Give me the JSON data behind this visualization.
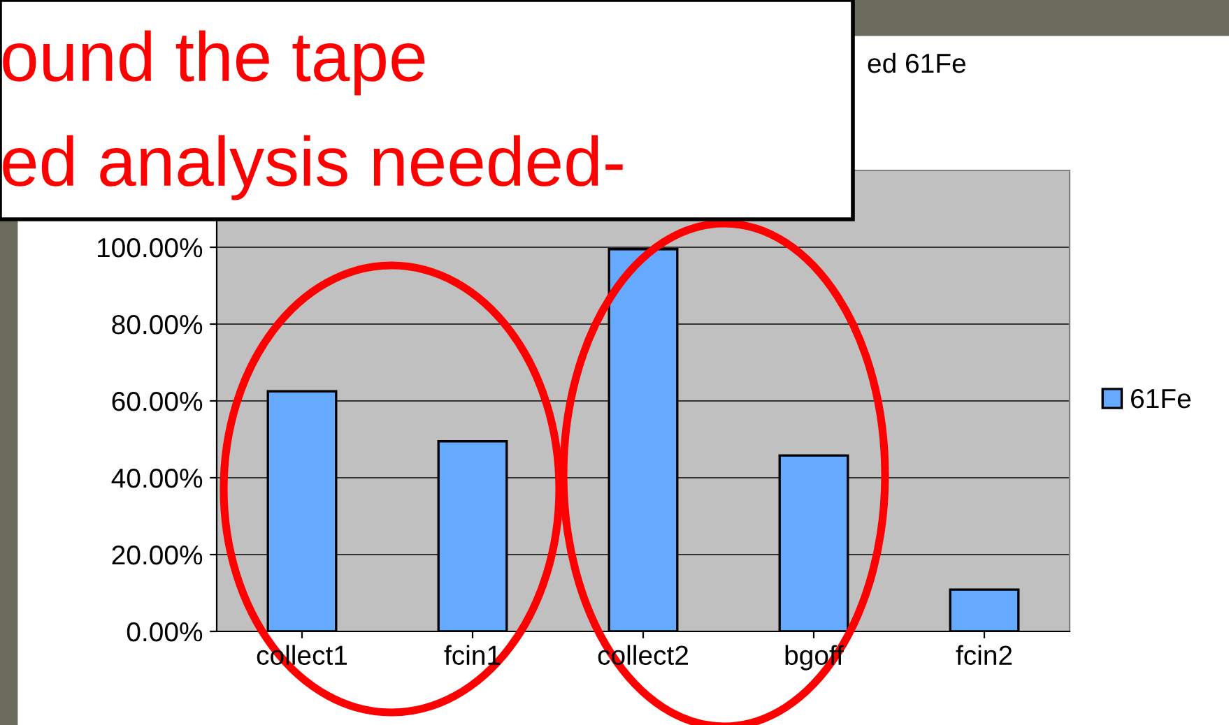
{
  "chart_data": {
    "type": "bar",
    "title": "ed 61Fe",
    "categories": [
      "collect1",
      "fcin1",
      "collect2",
      "bgoff",
      "fcin2"
    ],
    "series": [
      {
        "name": "61Fe",
        "color": "#66aaff",
        "values": [
          62.5,
          49.5,
          99.5,
          45.8,
          10.9
        ]
      }
    ],
    "ylim": [
      0,
      120
    ],
    "yticks": [
      {
        "value": 0,
        "label": "0.00%"
      },
      {
        "value": 20,
        "label": "20.00%"
      },
      {
        "value": 40,
        "label": "40.00%"
      },
      {
        "value": 60,
        "label": "60.00%"
      },
      {
        "value": 80,
        "label": "80.00%"
      },
      {
        "value": 100,
        "label": "100.00%"
      }
    ],
    "grid": "y",
    "legend": "right",
    "annotations": [
      "ound the tape",
      "ed analysis needed-"
    ]
  }
}
